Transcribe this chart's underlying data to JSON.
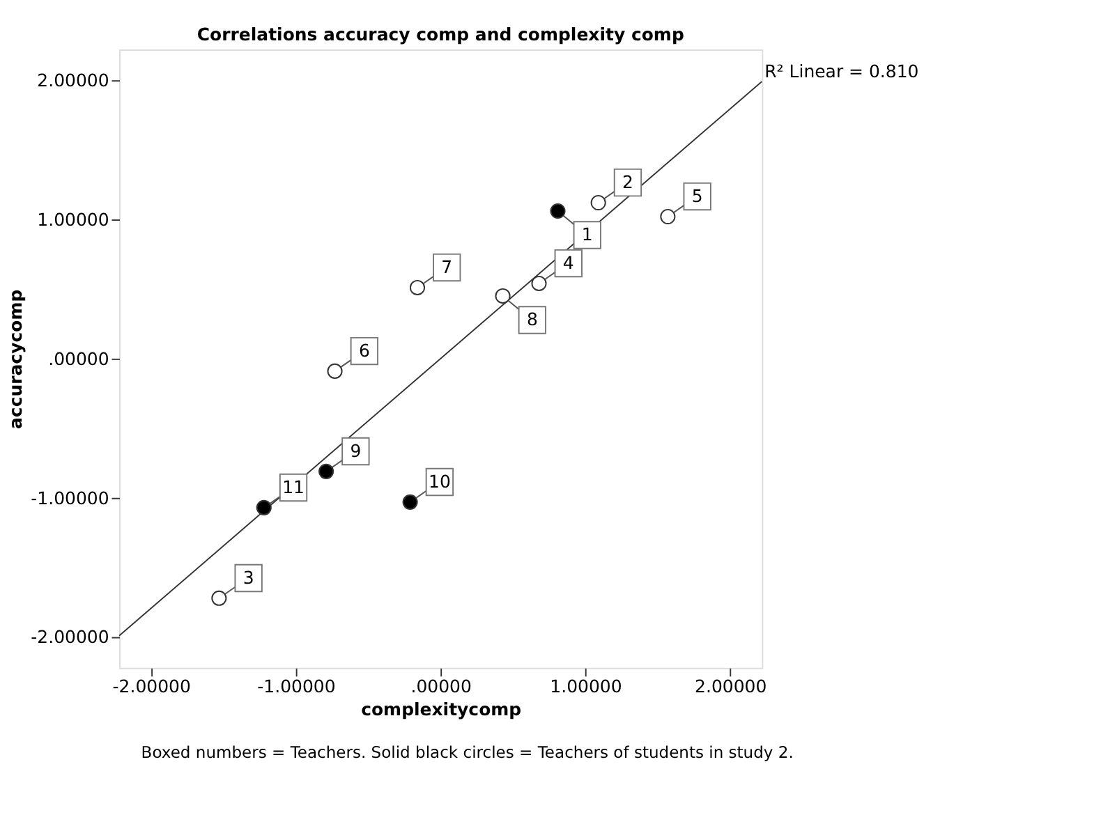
{
  "chart_data": {
    "type": "scatter",
    "title": "Correlations accuracy comp and complexity comp",
    "xlabel": "complexitycomp",
    "ylabel": "accuracycomp",
    "xlim": [
      -2.22,
      2.22
    ],
    "ylim": [
      -2.22,
      2.22
    ],
    "xticks": [
      {
        "value": -2,
        "label": "-2.00000"
      },
      {
        "value": -1,
        "label": "-1.00000"
      },
      {
        "value": 0,
        "label": ".00000"
      },
      {
        "value": 1,
        "label": "1.00000"
      },
      {
        "value": 2,
        "label": "2.00000"
      }
    ],
    "yticks": [
      {
        "value": -2,
        "label": "-2.00000"
      },
      {
        "value": -1,
        "label": "-1.00000"
      },
      {
        "value": 0,
        "label": ".00000"
      },
      {
        "value": 1,
        "label": "1.00000"
      },
      {
        "value": 2,
        "label": "2.00000"
      }
    ],
    "grid": false,
    "marker": "circle",
    "series": [
      {
        "color": "#ffffff",
        "x": [
          1.09,
          -1.53,
          0.68,
          1.57,
          -0.73,
          -0.16,
          0.43
        ],
        "values": [
          1.12,
          -1.72,
          0.54,
          1.02,
          -0.09,
          0.51,
          0.45
        ]
      },
      {
        "color": "#000000",
        "x": [
          0.81,
          -0.79,
          -0.21,
          -1.22
        ],
        "values": [
          1.06,
          -0.81,
          -1.03,
          -1.07
        ]
      },
      {
        "type": "line",
        "color": "#333333",
        "x": [
          -2.22,
          2.22
        ],
        "values": [
          -1.99,
          1.99
        ],
        "line_style": "solid",
        "marker": "none"
      }
    ],
    "annotations": [
      "R² Linear = 0.810",
      "Boxed numbers = Teachers. Solid black circles = Teachers of students in study 2.",
      {
        "text": "1",
        "x": 0.81,
        "y": 1.06
      },
      {
        "text": "2",
        "x": 1.09,
        "y": 1.12
      },
      {
        "text": "3",
        "x": -1.53,
        "y": -1.72
      },
      {
        "text": "4",
        "x": 0.68,
        "y": 0.54
      },
      {
        "text": "5",
        "x": 1.57,
        "y": 1.02
      },
      {
        "text": "6",
        "x": -0.73,
        "y": -0.09
      },
      {
        "text": "7",
        "x": -0.16,
        "y": 0.51
      },
      {
        "text": "8",
        "x": 0.43,
        "y": 0.45
      },
      {
        "text": "9",
        "x": -0.79,
        "y": -0.81
      },
      {
        "text": "10",
        "x": -0.21,
        "y": -1.03
      },
      {
        "text": "11",
        "x": -1.22,
        "y": -1.07
      }
    ]
  }
}
